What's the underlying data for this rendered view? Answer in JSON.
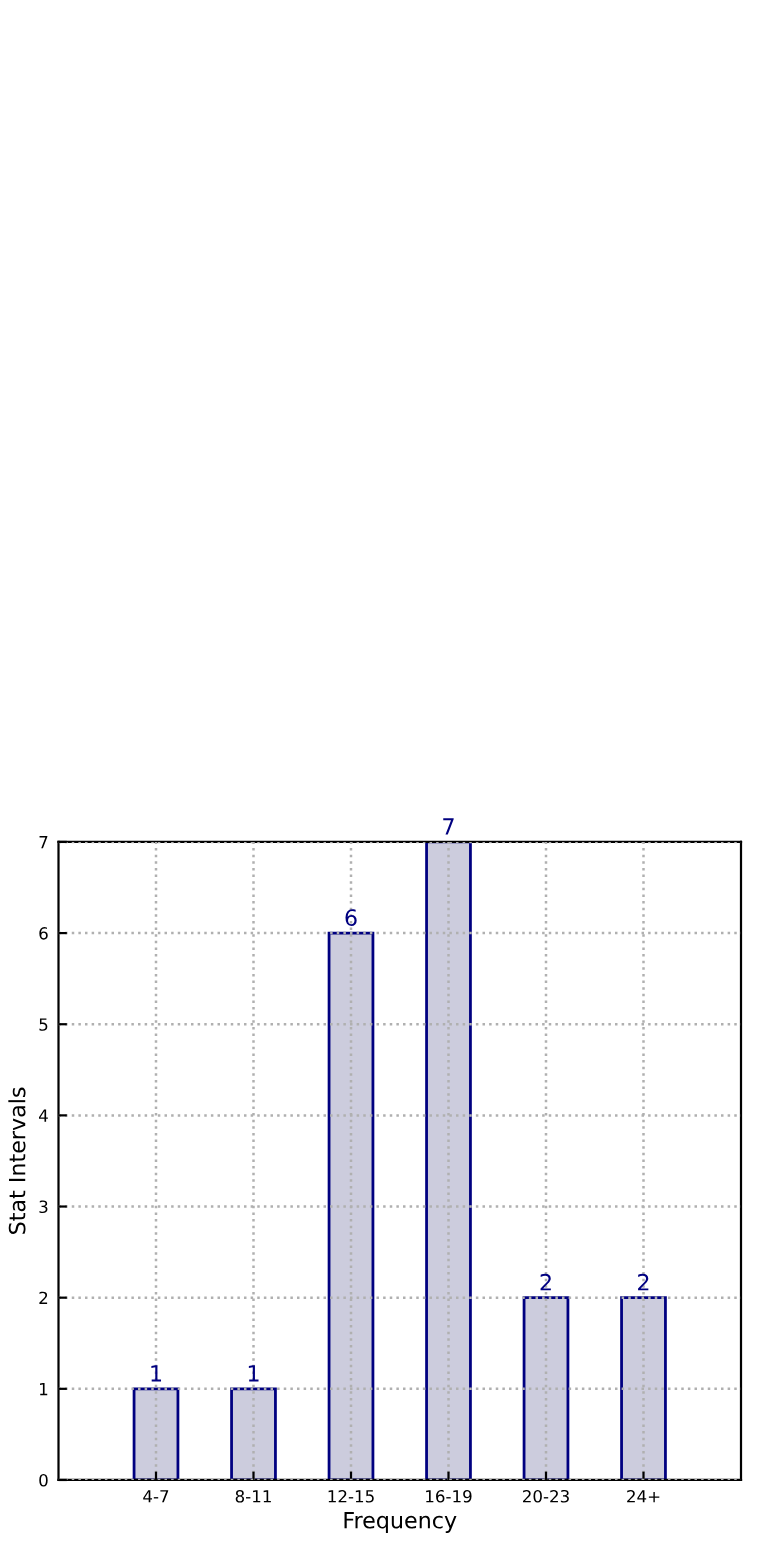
{
  "chart_data": {
    "type": "bar",
    "xlabel": "Frequency",
    "ylabel": "Stat Intervals",
    "categories": [
      "4-7",
      "8-11",
      "12-15",
      "16-19",
      "20-23",
      "24+"
    ],
    "values": [
      1,
      1,
      6,
      7,
      2,
      2
    ],
    "color": "#ccccdd",
    "ylim": [
      0,
      7
    ],
    "yticks": [
      0,
      1,
      2,
      3,
      4,
      5,
      6,
      7
    ],
    "grid": true,
    "data_labels": true
  }
}
